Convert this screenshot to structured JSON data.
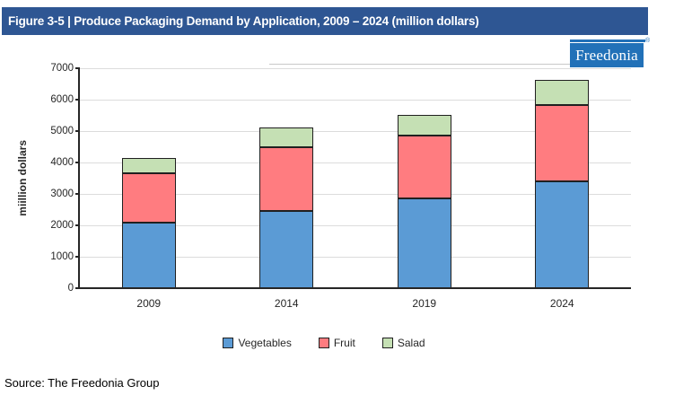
{
  "header": {
    "title": "Figure 3-5 | Produce Packaging Demand by Application, 2009 – 2024 (million dollars)"
  },
  "logo": {
    "text": "Freedonia",
    "registered_mark": "®"
  },
  "source": {
    "text": "Source: The Freedonia Group"
  },
  "colors": {
    "header_bar": "#2e5693",
    "logo_blue": "#2271b8",
    "vegetables": "#5b9bd5",
    "fruit": "#ff7c80",
    "salad": "#c5e0b4",
    "gridline": "#dcdcdc",
    "axis": "#262626"
  },
  "chart_data": {
    "type": "bar",
    "stacked": true,
    "title": "Produce Packaging Demand by Application, 2009 – 2024 (million dollars)",
    "categories": [
      "2009",
      "2014",
      "2019",
      "2024"
    ],
    "series": [
      {
        "name": "Vegetables",
        "color": "#5b9bd5",
        "values": [
          2090,
          2460,
          2860,
          3410
        ]
      },
      {
        "name": "Fruit",
        "color": "#ff7c80",
        "values": [
          1560,
          2020,
          2010,
          2430
        ]
      },
      {
        "name": "Salad",
        "color": "#c5e0b4",
        "values": [
          500,
          645,
          640,
          790
        ]
      }
    ],
    "totals": [
      4150,
      5125,
      5510,
      6630
    ],
    "xlabel": "",
    "ylabel": "miillion dollars",
    "ylim": [
      0,
      7000
    ],
    "yticks": [
      0,
      1000,
      2000,
      3000,
      4000,
      5000,
      6000,
      7000
    ],
    "grid": true,
    "legend_position": "bottom"
  }
}
